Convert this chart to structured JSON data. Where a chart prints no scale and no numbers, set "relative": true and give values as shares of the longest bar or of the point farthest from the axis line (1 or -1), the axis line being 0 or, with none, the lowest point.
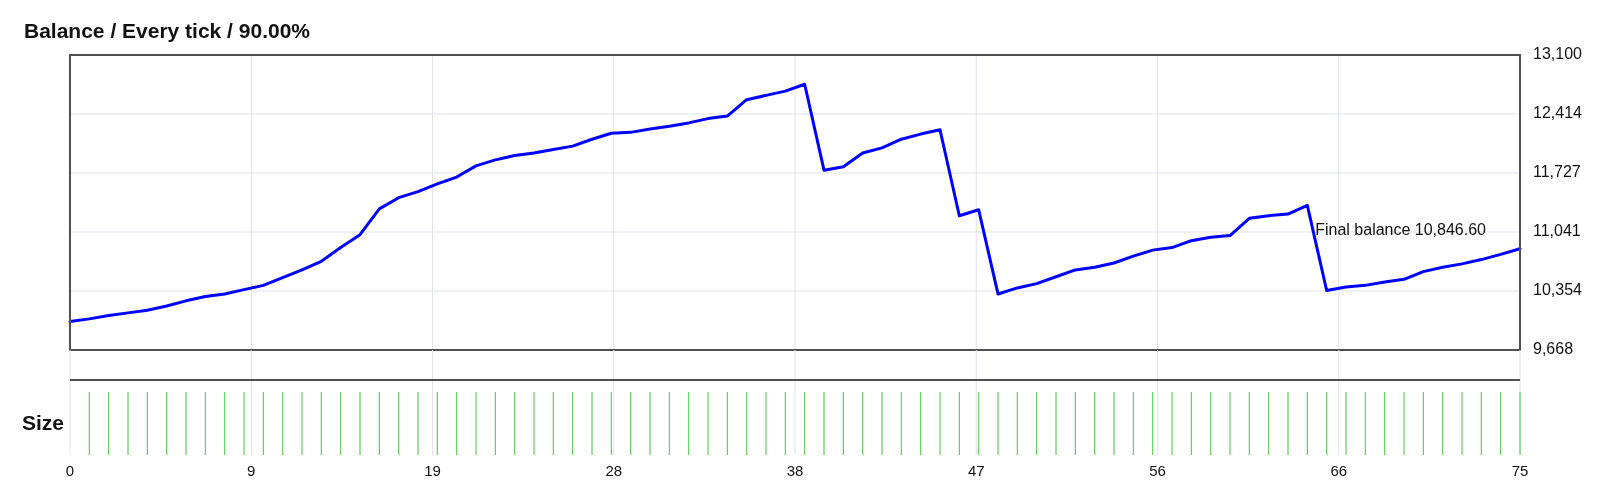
{
  "chart_data": [
    {
      "type": "line",
      "title": "Balance / Every tick / 90.00%",
      "x": [
        0,
        1,
        2,
        3,
        4,
        5,
        6,
        7,
        8,
        9,
        10,
        11,
        12,
        13,
        14,
        15,
        16,
        17,
        18,
        19,
        20,
        21,
        22,
        23,
        24,
        25,
        26,
        27,
        28,
        29,
        30,
        31,
        32,
        33,
        34,
        35,
        36,
        37,
        38,
        39,
        40,
        41,
        42,
        43,
        44,
        45,
        46,
        47,
        48,
        49,
        50,
        51,
        52,
        53,
        54,
        55,
        56,
        57,
        58,
        59,
        60,
        61,
        62,
        63,
        64,
        65,
        66,
        67,
        68,
        69,
        70,
        71,
        72,
        73,
        74,
        75
      ],
      "series": [
        {
          "color": "#0000ff",
          "values": [
            10000,
            10030,
            10070,
            10100,
            10130,
            10180,
            10240,
            10290,
            10320,
            10370,
            10420,
            10510,
            10600,
            10700,
            10860,
            11010,
            11310,
            11440,
            11510,
            11600,
            11680,
            11810,
            11880,
            11930,
            11960,
            12000,
            12040,
            12120,
            12190,
            12200,
            12240,
            12270,
            12310,
            12360,
            12390,
            12580,
            12630,
            12680,
            12760,
            11760,
            11800,
            11960,
            12020,
            12120,
            12180,
            12230,
            11230,
            11300,
            10320,
            10390,
            10440,
            10520,
            10600,
            10630,
            10680,
            10760,
            10830,
            10860,
            10940,
            10980,
            11000,
            11200,
            11230,
            11250,
            11350,
            10360,
            10400,
            10420,
            10460,
            10490,
            10580,
            10630,
            10670,
            10720,
            10780,
            10846.6
          ]
        }
      ],
      "xlim": [
        0,
        75
      ],
      "xticks": [
        {
          "value": 9.375,
          "label": null
        },
        {
          "value": 18.75,
          "label": null
        },
        {
          "value": 28.125,
          "label": null
        },
        {
          "value": 37.5,
          "label": null
        },
        {
          "value": 46.875,
          "label": null
        },
        {
          "value": 56.25,
          "label": null
        },
        {
          "value": 65.625,
          "label": null
        }
      ],
      "ylim": [
        9668,
        13100
      ],
      "yticks": [
        {
          "value": 9668,
          "label": "9,668"
        },
        {
          "value": 10354.4,
          "label": "10,354"
        },
        {
          "value": 11040.8,
          "label": "11,041"
        },
        {
          "value": 11727.2,
          "label": "11,727"
        },
        {
          "value": 12413.6,
          "label": "12,414"
        },
        {
          "value": 13100,
          "label": "13,100"
        }
      ],
      "grid": true,
      "tick_labels": "y",
      "annotations": [
        {
          "text": "Final balance 10,846.60",
          "x": 75,
          "y": 10846.6
        }
      ]
    },
    {
      "type": "bar",
      "ylabel": "Size",
      "relative": true,
      "x": [
        1,
        2,
        3,
        4,
        5,
        6,
        7,
        8,
        9,
        10,
        11,
        12,
        13,
        14,
        15,
        16,
        17,
        18,
        19,
        20,
        21,
        22,
        23,
        24,
        25,
        26,
        27,
        28,
        29,
        30,
        31,
        32,
        33,
        34,
        35,
        36,
        37,
        38,
        39,
        40,
        41,
        42,
        43,
        44,
        45,
        46,
        47,
        48,
        49,
        50,
        51,
        52,
        53,
        54,
        55,
        56,
        57,
        58,
        59,
        60,
        61,
        62,
        63,
        64,
        65,
        66,
        67,
        68,
        69,
        70,
        71,
        72,
        73,
        74,
        75
      ],
      "series": [
        {
          "color": "#66cc66",
          "values": [
            1,
            1,
            1,
            1,
            1,
            1,
            1,
            1,
            1,
            1,
            1,
            1,
            1,
            1,
            1,
            1,
            1,
            1,
            1,
            1,
            1,
            1,
            1,
            1,
            1,
            1,
            1,
            1,
            1,
            1,
            1,
            1,
            1,
            1,
            1,
            1,
            1,
            1,
            1,
            1,
            1,
            1,
            1,
            1,
            1,
            1,
            1,
            1,
            1,
            1,
            1,
            1,
            1,
            1,
            1,
            1,
            1,
            1,
            1,
            1,
            1,
            1,
            1,
            1,
            1,
            1,
            1,
            1,
            1,
            1,
            1,
            1,
            1,
            1,
            1
          ]
        }
      ],
      "xlim": [
        0,
        75
      ],
      "xticks": [
        0,
        {
          "value": 9.375,
          "label": "9"
        },
        {
          "value": 18.75,
          "label": "19"
        },
        {
          "value": 28.125,
          "label": "28"
        },
        {
          "value": 37.5,
          "label": "38"
        },
        {
          "value": 46.875,
          "label": "47"
        },
        {
          "value": 56.25,
          "label": "56"
        },
        {
          "value": 65.625,
          "label": "66"
        },
        75
      ],
      "grid": "x",
      "tick_labels": "x"
    }
  ]
}
